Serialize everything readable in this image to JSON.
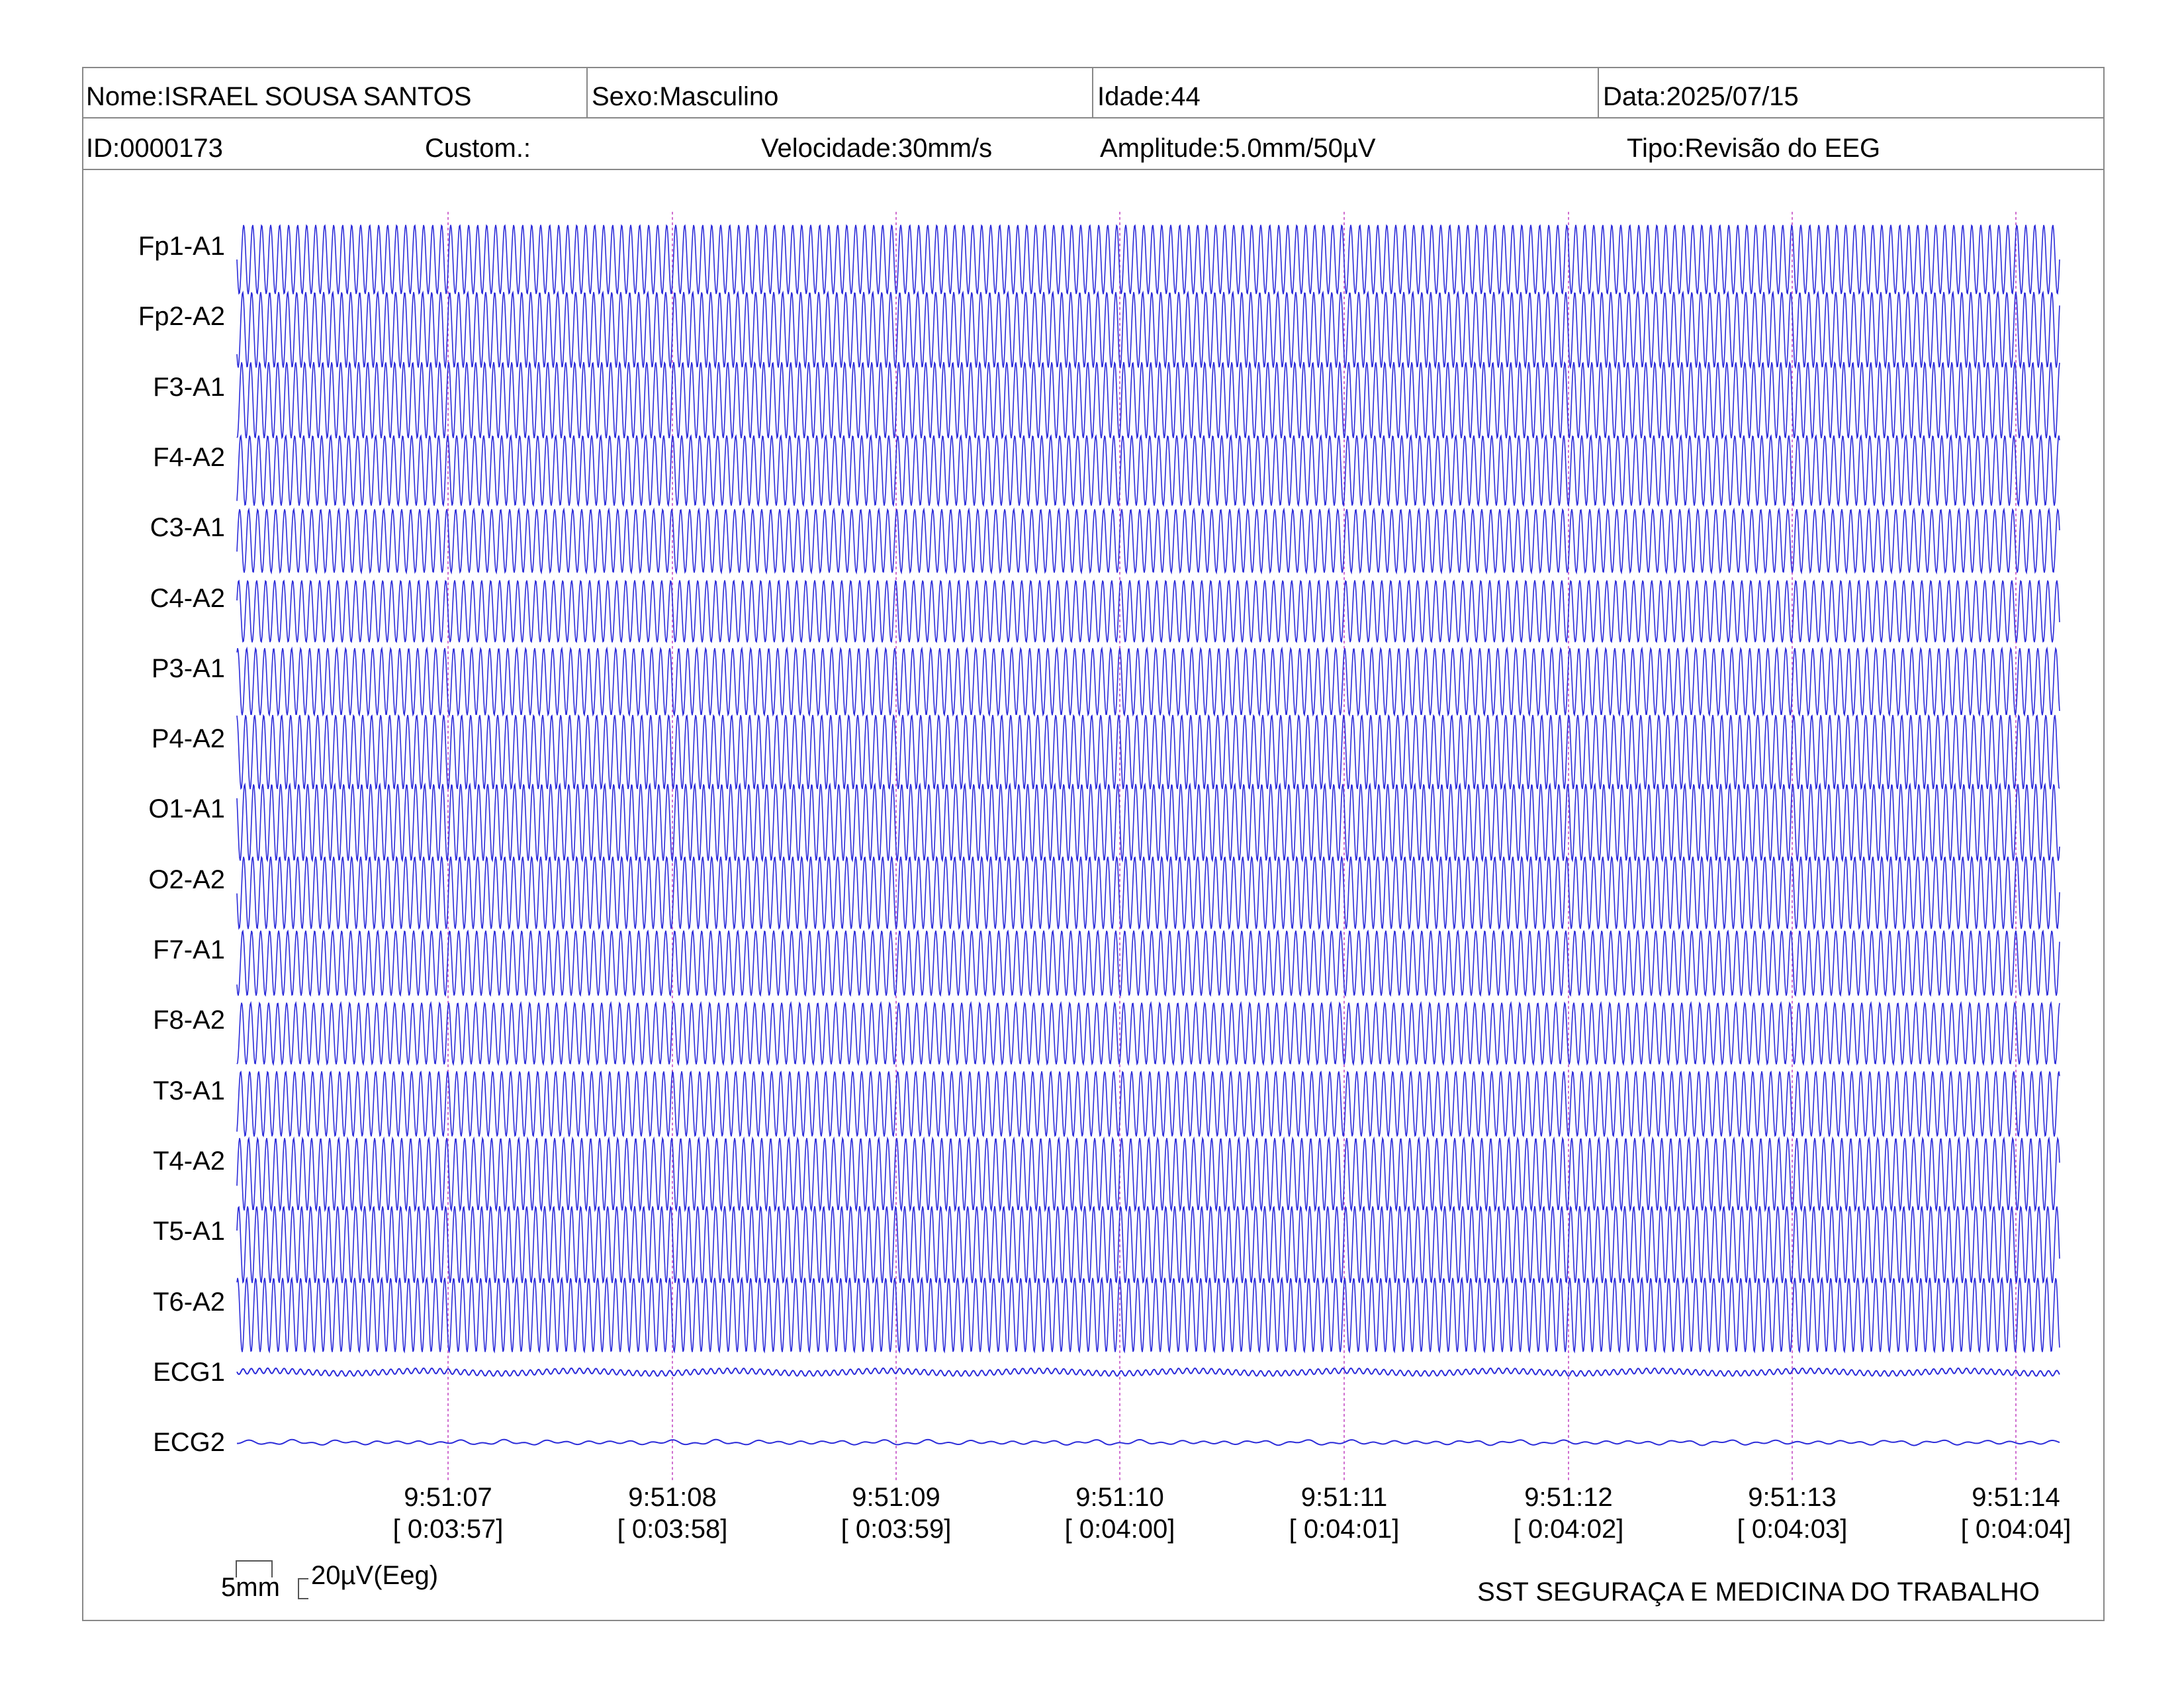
{
  "header": {
    "name": "Nome:ISRAEL SOUSA SANTOS",
    "sex": "Sexo:Masculino",
    "age": "Idade:44",
    "date": "Data:2025/07/15",
    "id": "ID:0000173",
    "custom": "Custom.:",
    "speed": "Velocidade:30mm/s",
    "amplitude": "Amplitude:5.0mm/50µV",
    "type": "Tipo:Revisão do EEG"
  },
  "channels": [
    "Fp1-A1",
    "Fp2-A2",
    "F3-A1",
    "F4-A2",
    "C3-A1",
    "C4-A2",
    "P3-A1",
    "P4-A2",
    "O1-A1",
    "O2-A2",
    "F7-A1",
    "F8-A2",
    "T3-A1",
    "T4-A2",
    "T5-A1",
    "T6-A2",
    "ECG1",
    "ECG2"
  ],
  "timestamps": [
    {
      "time": "9:51:07",
      "elapsed": "[ 0:03:57]"
    },
    {
      "time": "9:51:08",
      "elapsed": "[ 0:03:58]"
    },
    {
      "time": "9:51:09",
      "elapsed": "[ 0:03:59]"
    },
    {
      "time": "9:51:10",
      "elapsed": "[ 0:04:00]"
    },
    {
      "time": "9:51:11",
      "elapsed": "[ 0:04:01]"
    },
    {
      "time": "9:51:12",
      "elapsed": "[ 0:04:02]"
    },
    {
      "time": "9:51:13",
      "elapsed": "[ 0:04:03]"
    },
    {
      "time": "9:51:14",
      "elapsed": "[ 0:04:04]"
    }
  ],
  "scale": {
    "time_label": "5mm",
    "amp_label": "20µV(Eeg)"
  },
  "footer": {
    "organization": "SST SEGURAÇA E MEDICINA DO TRABALHO"
  },
  "colors": {
    "trace": "#2b2bd9",
    "time_marker": "#d070d0",
    "border": "#888888"
  }
}
